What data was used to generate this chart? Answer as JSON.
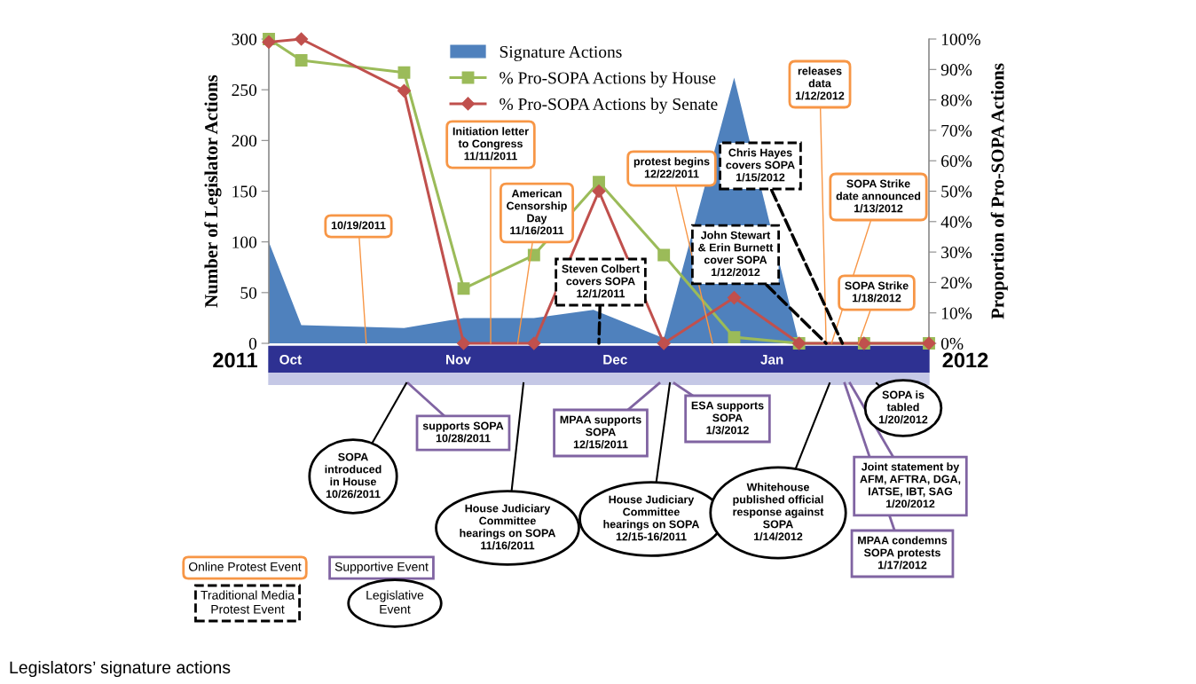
{
  "chart_data": {
    "type": "area",
    "ylabel": "Number of Legislator Actions",
    "y2label": "Proportion of Pro-SOPA Actions",
    "xlim": [
      "2011-10-01",
      "2012-01-31"
    ],
    "xticks": [
      {
        "value": "2011-10-05",
        "label": "Oct"
      },
      {
        "value": "2011-11-05",
        "label": "Nov"
      },
      {
        "value": "2011-12-04",
        "label": "Dec"
      },
      {
        "value": "2012-01-02",
        "label": "Jan"
      }
    ],
    "ylim": [
      0,
      300
    ],
    "yticks": [
      0,
      50,
      100,
      150,
      200,
      250,
      300
    ],
    "y2lim": [
      0,
      100
    ],
    "y2ticks": [
      {
        "value": 0,
        "label": "0%"
      },
      {
        "value": 10,
        "label": "10%"
      },
      {
        "value": 20,
        "label": "20%"
      },
      {
        "value": 30,
        "label": "30%"
      },
      {
        "value": 40,
        "label": "40%"
      },
      {
        "value": 50,
        "label": "50%"
      },
      {
        "value": 60,
        "label": "60%"
      },
      {
        "value": 70,
        "label": "70%"
      },
      {
        "value": 80,
        "label": "80%"
      },
      {
        "value": 90,
        "label": "90%"
      },
      {
        "value": 100,
        "label": "100%"
      }
    ],
    "legend": "top",
    "series": [
      {
        "name": "Signature Actions",
        "color": "#4f81bd",
        "x": [
          "2011-10-01",
          "2011-10-07",
          "2011-10-26",
          "2011-11-06",
          "2011-11-19",
          "2011-11-30",
          "2011-12-13",
          "2011-12-26",
          "2012-01-07",
          "2012-01-31"
        ],
        "values": [
          100,
          18,
          15,
          25,
          25,
          33,
          5,
          262,
          0,
          0
        ]
      },
      {
        "name": "% Pro-SOPA Actions by House",
        "type": "line",
        "axis": "y2",
        "marker": "square",
        "color": "#9bbb59",
        "x": [
          "2011-10-01",
          "2011-10-07",
          "2011-10-26",
          "2011-11-06",
          "2011-11-19",
          "2011-12-01",
          "2011-12-13",
          "2011-12-26",
          "2012-01-07",
          "2012-01-19",
          "2012-01-31"
        ],
        "values": [
          100,
          93,
          89,
          18,
          29,
          53,
          29,
          2,
          0,
          0,
          0
        ]
      },
      {
        "name": "% Pro-SOPA Actions by Senate",
        "type": "line",
        "axis": "y2",
        "marker": "diamond",
        "color": "#c0504d",
        "x": [
          "2011-10-01",
          "2011-10-07",
          "2011-10-26",
          "2011-11-06",
          "2011-11-19",
          "2011-12-01",
          "2011-12-13",
          "2011-12-26",
          "2012-01-07",
          "2012-01-19",
          "2012-01-31"
        ],
        "values": [
          99,
          100,
          83,
          0,
          0,
          50,
          0,
          15,
          0,
          0,
          0
        ]
      }
    ],
    "annotations": [
      "2011",
      "2012",
      {
        "text": "10/19/2011",
        "x": "2011-10-19",
        "y": 0
      },
      {
        "text": "Initiation letter\nto Congress\n11/11/2011",
        "x": "2011-11-11",
        "y": 0
      },
      {
        "text": "American\nCensorship\nDay\n11/16/2011",
        "x": "2011-11-16",
        "y": 0
      },
      {
        "text": "protest begins\n12/22/2011",
        "x": "2011-12-22",
        "y": 0
      },
      {
        "text": "releases\ndata\n1/12/2012",
        "x": "2012-01-12",
        "y": 0
      },
      {
        "text": "SOPA Strike\ndate announced\n1/13/2012",
        "x": "2012-01-13",
        "y": 0
      },
      {
        "text": "SOPA Strike\n1/18/2012",
        "x": "2012-01-18",
        "y": 0
      },
      {
        "text": "Steven Colbert\ncovers SOPA\n12/1/2011",
        "x": "2011-12-01",
        "y": 0
      },
      {
        "text": "John Stewart\n& Erin Burnett\ncover SOPA\n1/12/2012",
        "x": "2012-01-12",
        "y": 0
      },
      {
        "text": "Chris Hayes\ncovers SOPA\n1/15/2012",
        "x": "2012-01-15",
        "y": 0
      },
      "supports SOPA\n10/28/2011",
      "MPAA supports\nSOPA\n12/15/2011",
      "ESA supports\nSOPA\n1/3/2012",
      "Joint statement by\nAFM, AFTRA, DGA,\nIATSE, IBT, SAG\n1/20/2012",
      "MPAA condemns\nSOPA protests\n1/17/2012",
      "SOPA\nintroduced\nin House\n10/26/2011",
      "House Judiciary\nCommittee\nhearings on SOPA\n11/16/2011",
      "House Judiciary\nCommittee\nhearings on SOPA\n12/15-16/2011",
      "Whitehouse\npublished official\nresponse against\nSOPA\n1/14/2012",
      "SOPA is\ntabled\n1/20/2012",
      "Online Protest Event",
      "Supportive Event",
      "Traditional Media\nProtest Event",
      "Legislative\nEvent",
      "Legislators’ signature actions"
    ]
  }
}
